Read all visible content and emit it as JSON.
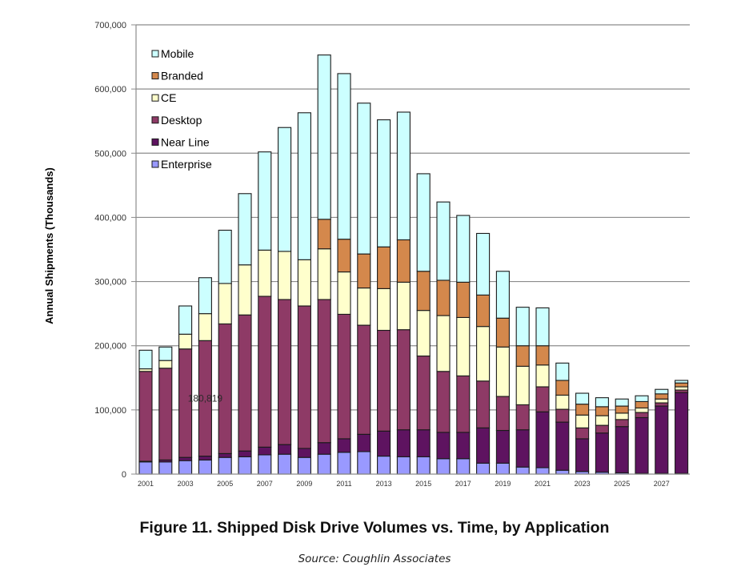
{
  "figure": {
    "title": "Figure 11. Shipped Disk Drive Volumes vs. Time, by Application",
    "source": "Source:  Coughlin Associates"
  },
  "chart_data": {
    "type": "bar",
    "stacked": true,
    "title": "Figure 11. Shipped Disk Drive Volumes vs. Time, by Application",
    "xlabel": "",
    "ylabel": "Annual Shipments (Thousands)",
    "ylim": [
      0,
      700000
    ],
    "yticks": [
      0,
      100000,
      200000,
      300000,
      400000,
      500000,
      600000,
      700000
    ],
    "ytick_labels": [
      "0",
      "100,000",
      "200,000",
      "300,000",
      "400,000",
      "500,000",
      "600,000",
      "700,000"
    ],
    "grid": "horizontal",
    "legend_position": "top-left",
    "categories": [
      "2001",
      "2002",
      "2003",
      "2004",
      "2005",
      "2006",
      "2007",
      "2008",
      "2009",
      "2010",
      "2011",
      "2012",
      "2013",
      "2014",
      "2015",
      "2016",
      "2017",
      "2018",
      "2019",
      "2020",
      "2021",
      "2022",
      "2023",
      "2024",
      "2025",
      "2026",
      "2027",
      "2028"
    ],
    "xtick_labels": [
      "2001",
      "",
      "2003",
      "",
      "2005",
      "",
      "2007",
      "",
      "2009",
      "",
      "2011",
      "",
      "2013",
      "",
      "2015",
      "",
      "2017",
      "",
      "2019",
      "",
      "2021",
      "",
      "2023",
      "",
      "2025",
      "",
      "2027",
      ""
    ],
    "annotations": [
      {
        "text": "180,819",
        "category": "2004",
        "value": 118000
      }
    ],
    "series": [
      {
        "name": "Enterprise",
        "color": "#9999FF",
        "values": [
          19000,
          19000,
          21000,
          22000,
          26000,
          27000,
          30000,
          31000,
          26000,
          31000,
          34000,
          35000,
          28000,
          27000,
          27000,
          24000,
          24000,
          17000,
          17000,
          11000,
          10000,
          6000,
          4000,
          3000,
          2000,
          1000,
          1000,
          1000
        ]
      },
      {
        "name": "Near Line",
        "color": "#5E1360",
        "values": [
          1000,
          3000,
          5000,
          6000,
          6000,
          9000,
          12000,
          15000,
          14000,
          18000,
          21000,
          27000,
          39000,
          42000,
          42000,
          41000,
          41000,
          55000,
          51000,
          58000,
          87000,
          75000,
          51000,
          61000,
          72000,
          87000,
          105000,
          126000
        ]
      },
      {
        "name": "Desktop",
        "color": "#8E3A66",
        "values": [
          140000,
          143000,
          169000,
          180000,
          202000,
          212000,
          235000,
          226000,
          222000,
          223000,
          194000,
          170000,
          157000,
          156000,
          115000,
          95000,
          88000,
          73000,
          53000,
          39000,
          39000,
          20000,
          17000,
          12000,
          11000,
          8000,
          5000,
          4000
        ]
      },
      {
        "name": "CE",
        "color": "#FFFFCC",
        "values": [
          4000,
          12000,
          23000,
          42000,
          63000,
          78000,
          72000,
          75000,
          72000,
          79000,
          66000,
          58000,
          65000,
          74000,
          71000,
          87000,
          91000,
          85000,
          77000,
          60000,
          34000,
          22000,
          20000,
          15000,
          10000,
          7000,
          6000,
          5000
        ]
      },
      {
        "name": "Branded",
        "color": "#D4884C",
        "values": [
          0,
          0,
          0,
          0,
          0,
          0,
          0,
          0,
          0,
          46000,
          51000,
          53000,
          65000,
          66000,
          61000,
          55000,
          55000,
          49000,
          45000,
          32000,
          30000,
          23000,
          17000,
          14000,
          11000,
          10000,
          8000,
          6000
        ]
      },
      {
        "name": "Mobile",
        "color": "#CCFFFF",
        "values": [
          29000,
          21000,
          44000,
          56000,
          83000,
          111000,
          153000,
          193000,
          229000,
          256000,
          258000,
          235000,
          198000,
          199000,
          152000,
          122000,
          104000,
          96000,
          73000,
          60000,
          59000,
          27000,
          17000,
          14000,
          11000,
          9000,
          7000,
          4000
        ]
      }
    ],
    "legend_order": [
      "Mobile",
      "Branded",
      "CE",
      "Desktop",
      "Near Line",
      "Enterprise"
    ]
  }
}
